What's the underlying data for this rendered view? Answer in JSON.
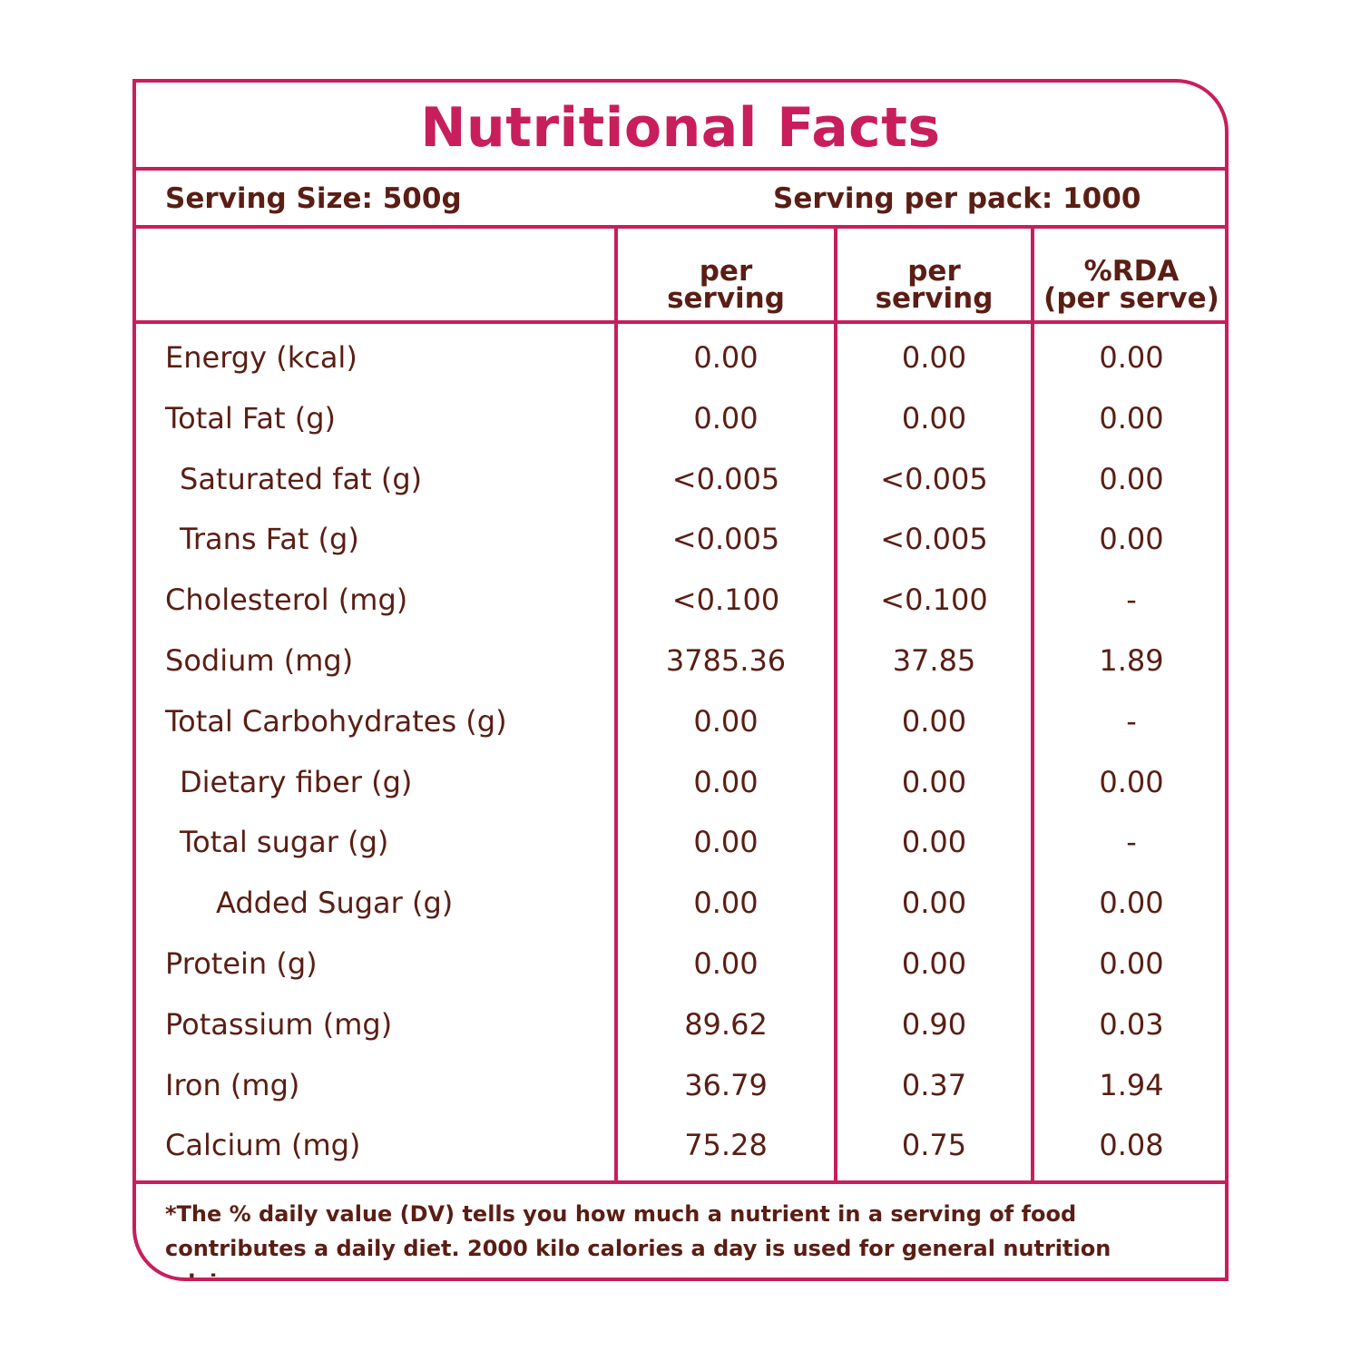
{
  "title": "Nutritional Facts",
  "serving_size": "Serving Size: 500g",
  "serving_per_pack": "Serving per pack: 1000",
  "columns": [
    {
      "line1": "per",
      "line2": "serving"
    },
    {
      "line1": "per",
      "line2": "serving"
    },
    {
      "line1": "%RDA",
      "line2": "(per serve)"
    }
  ],
  "rows": [
    {
      "label": "Energy (kcal)",
      "indent": 0,
      "values": [
        "0.00",
        "0.00",
        "0.00"
      ]
    },
    {
      "label": "Total Fat (g)",
      "indent": 0,
      "values": [
        "0.00",
        "0.00",
        "0.00"
      ]
    },
    {
      "label": "Saturated fat (g)",
      "indent": 1,
      "values": [
        "<0.005",
        "<0.005",
        "0.00"
      ]
    },
    {
      "label": "Trans Fat (g)",
      "indent": 1,
      "values": [
        "<0.005",
        "<0.005",
        "0.00"
      ]
    },
    {
      "label": "Cholesterol (mg)",
      "indent": 0,
      "values": [
        "<0.100",
        "<0.100",
        "-"
      ]
    },
    {
      "label": "Sodium (mg)",
      "indent": 0,
      "values": [
        "3785.36",
        "37.85",
        "1.89"
      ]
    },
    {
      "label": "Total Carbohydrates  (g)",
      "indent": 0,
      "values": [
        "0.00",
        "0.00",
        "-"
      ]
    },
    {
      "label": "Dietary fiber (g)",
      "indent": 1,
      "values": [
        "0.00",
        "0.00",
        "0.00"
      ]
    },
    {
      "label": "Total sugar (g)",
      "indent": 1,
      "values": [
        "0.00",
        "0.00",
        "-"
      ]
    },
    {
      "label": "Added Sugar (g)",
      "indent": 2,
      "values": [
        "0.00",
        "0.00",
        "0.00"
      ]
    },
    {
      "label": "Protein (g)",
      "indent": 0,
      "values": [
        "0.00",
        "0.00",
        "0.00"
      ]
    },
    {
      "label": "Potassium (mg)",
      "indent": 0,
      "values": [
        "89.62",
        "0.90",
        "0.03"
      ]
    },
    {
      "label": "Iron (mg)",
      "indent": 0,
      "values": [
        "36.79",
        "0.37",
        "1.94"
      ]
    },
    {
      "label": "Calcium (mg)",
      "indent": 0,
      "values": [
        "75.28",
        "0.75",
        "0.08"
      ]
    }
  ],
  "footnote": "*The % daily value (DV) tells you how much a nutrient in a serving of food contributes a daily diet. 2000 kilo calories a day is used for general nutrition advice.",
  "colors": {
    "border": "#c81e5c",
    "title": "#c81e5c",
    "text": "#5a1e14"
  }
}
